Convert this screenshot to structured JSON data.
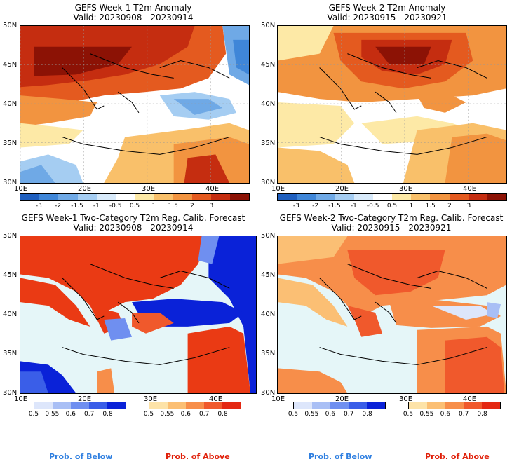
{
  "panels": {
    "p1": {
      "title_line1": "GEFS Week-1 T2m Anomaly",
      "title_line2": "Valid: 20230908 - 20230914"
    },
    "p2": {
      "title_line1": "GEFS Week-2 T2m Anomaly",
      "title_line2": "Valid: 20230915 - 20230921"
    },
    "p3": {
      "title_line1": "GEFS Week-1 Two-Category T2m Reg. Calib. Forecast",
      "title_line2": "Valid: 20230908 - 20230914"
    },
    "p4": {
      "title_line1": "GEFS Week-2 Two-Category T2m Reg. Calib. Forecast",
      "title_line2": "Valid: 20230915 - 20230921"
    }
  },
  "axes": {
    "lat_labels": [
      "50N",
      "45N",
      "40N",
      "35N",
      "30N"
    ],
    "lon_labels": [
      "10E",
      "20E",
      "30E",
      "40E"
    ]
  },
  "anomaly_colorbar": {
    "labels": [
      "-3",
      "-2",
      "-1.5",
      "-1",
      "-0.5",
      "0.5",
      "1",
      "1.5",
      "2",
      "3"
    ],
    "colors": [
      "#1f5fbf",
      "#3f86d8",
      "#6fa9e6",
      "#a5cdf2",
      "#d8eafa",
      "#ffffff",
      "#fde9a6",
      "#f9c06a",
      "#f29440",
      "#e45a1f",
      "#c52d10",
      "#8c1205"
    ]
  },
  "prob_colorbar": {
    "below_labels": [
      "0.5",
      "0.55",
      "0.6",
      "0.7",
      "0.8"
    ],
    "above_labels": [
      "0.5",
      "0.55",
      "0.6",
      "0.7",
      "0.8"
    ],
    "below_colors": [
      "#dde6fb",
      "#a9bff5",
      "#6f8ff0",
      "#3a5ee8",
      "#0a22d8"
    ],
    "above_colors": [
      "#fde3a8",
      "#fbbf74",
      "#f78e4a",
      "#f0592c",
      "#e42812"
    ]
  },
  "legend": {
    "below_label": "Prob. of Below",
    "above_label": "Prob. of Above",
    "below_color": "#2f7fe0",
    "above_color": "#e0200a"
  }
}
